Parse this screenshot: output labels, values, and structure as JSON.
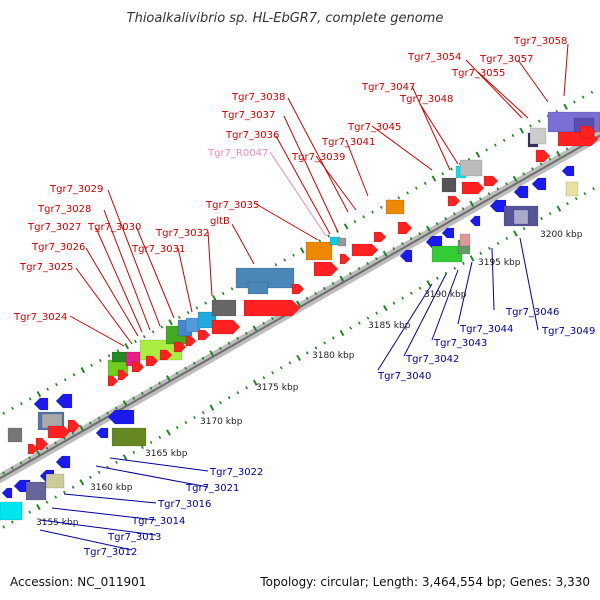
{
  "title": "Thioalkalivibrio sp. HL-EbGR7, complete genome",
  "footer": {
    "accession": "Accession: NC_011901",
    "summary": "Topology: circular; Length: 3,464,554 bp; Genes: 3,330"
  },
  "colors": {
    "backbone": "#9a9a9a",
    "tick": "#228822",
    "forward_gene": "#ff2020",
    "reverse_gene": "#1a1aee",
    "label_forward": "#cc0000",
    "label_reverse": "#000099",
    "label_rna": "#ee88bb"
  },
  "kbp_ticks": [
    "3155 kbp",
    "3160 kbp",
    "3165 kbp",
    "3170 kbp",
    "3175 kbp",
    "3180 kbp",
    "3185 kbp",
    "3190 kbp",
    "3195 kbp",
    "3200 kbp"
  ],
  "top_labels": [
    "Tgr7_3024",
    "Tgr7_3025",
    "Tgr7_3026",
    "Tgr7_3027",
    "Tgr7_3028",
    "Tgr7_3029",
    "Tgr7_3030",
    "Tgr7_3031",
    "Tgr7_3032",
    "gltB",
    "Tgr7_3035",
    "Tgr7_R0047",
    "Tgr7_3036",
    "Tgr7_3037",
    "Tgr7_3038",
    "Tgr7_3039",
    "Tgr7_3041",
    "Tgr7_3045",
    "Tgr7_3047",
    "Tgr7_3048",
    "Tgr7_3054",
    "Tgr7_3055",
    "Tgr7_3057",
    "Tgr7_3058"
  ],
  "bottom_labels": [
    "Tgr7_3012",
    "Tgr7_3013",
    "Tgr7_3014",
    "Tgr7_3016",
    "Tgr7_3021",
    "Tgr7_3022",
    "Tgr7_3040",
    "Tgr7_3042",
    "Tgr7_3043",
    "Tgr7_3044",
    "Tgr7_3046",
    "Tgr7_3049"
  ]
}
